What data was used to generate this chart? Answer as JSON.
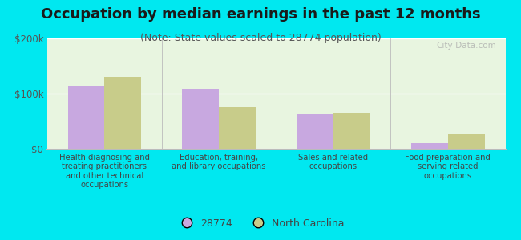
{
  "title": "Occupation by median earnings in the past 12 months",
  "subtitle": "(Note: State values scaled to 28774 population)",
  "categories": [
    "Health diagnosing and\ntreating practitioners\nand other technical\noccupations",
    "Education, training,\nand library occupations",
    "Sales and related\noccupations",
    "Food preparation and\nserving related\noccupations"
  ],
  "values_28774": [
    115000,
    108000,
    63000,
    10000
  ],
  "values_nc": [
    130000,
    75000,
    65000,
    27000
  ],
  "color_28774": "#c8a8e0",
  "color_nc": "#c8cc8a",
  "background_outer": "#00e8f0",
  "background_inner": "#e8f5e0",
  "ylim": [
    0,
    200000
  ],
  "yticks": [
    0,
    100000,
    200000
  ],
  "ytick_labels": [
    "$0",
    "$100k",
    "$200k"
  ],
  "legend_labels": [
    "28774",
    "North Carolina"
  ],
  "bar_width": 0.32,
  "title_fontsize": 13,
  "subtitle_fontsize": 9,
  "title_color": "#1a1a1a",
  "subtitle_color": "#555555",
  "axis_text_color": "#444444",
  "tick_label_color": "#555555"
}
